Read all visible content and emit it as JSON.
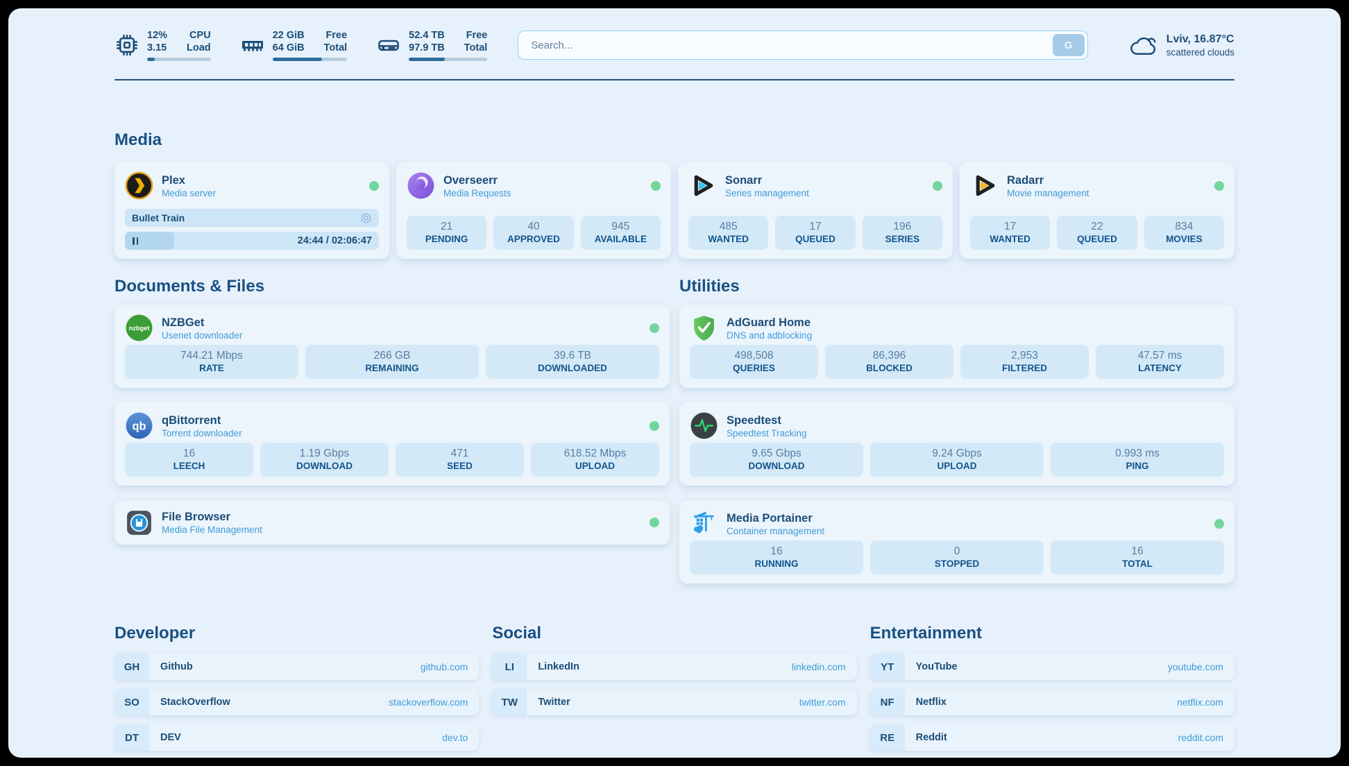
{
  "topbar": {
    "cpu": {
      "values": [
        "12%",
        "3.15"
      ],
      "labels": [
        "CPU",
        "Load"
      ],
      "progress_pct": 12
    },
    "ram": {
      "values": [
        "22 GiB",
        "64 GiB"
      ],
      "labels": [
        "Free",
        "Total"
      ],
      "progress_pct": 66
    },
    "disk": {
      "values": [
        "52.4 TB",
        "97.9 TB"
      ],
      "labels": [
        "Free",
        "Total"
      ],
      "progress_pct": 46
    },
    "search": {
      "placeholder": "Search...",
      "button_label": "G"
    },
    "weather": {
      "location_temp": "Lviv, 16.87°C",
      "condition": "scattered clouds"
    }
  },
  "sections": {
    "media": {
      "title": "Media",
      "plex": {
        "name": "Plex",
        "subtitle": "Media server",
        "online": true,
        "now_playing": {
          "title": "Bullet Train",
          "state": "paused",
          "time_display": "24:44 / 02:06:47",
          "progress_pct": 19.5
        }
      },
      "overseerr": {
        "name": "Overseerr",
        "subtitle": "Media Requests",
        "online": true,
        "stats": [
          {
            "value": "21",
            "label": "PENDING"
          },
          {
            "value": "40",
            "label": "APPROVED"
          },
          {
            "value": "945",
            "label": "AVAILABLE"
          }
        ]
      },
      "sonarr": {
        "name": "Sonarr",
        "subtitle": "Series management",
        "online": true,
        "stats": [
          {
            "value": "485",
            "label": "WANTED"
          },
          {
            "value": "17",
            "label": "QUEUED"
          },
          {
            "value": "196",
            "label": "SERIES"
          }
        ]
      },
      "radarr": {
        "name": "Radarr",
        "subtitle": "Movie management",
        "online": true,
        "stats": [
          {
            "value": "17",
            "label": "WANTED"
          },
          {
            "value": "22",
            "label": "QUEUED"
          },
          {
            "value": "834",
            "label": "MOVIES"
          }
        ]
      }
    },
    "documents": {
      "title": "Documents & Files",
      "nzbget": {
        "name": "NZBGet",
        "subtitle": "Usenet downloader",
        "online": true,
        "stats": [
          {
            "value": "744.21 Mbps",
            "label": "RATE"
          },
          {
            "value": "266 GB",
            "label": "REMAINING"
          },
          {
            "value": "39.6 TB",
            "label": "DOWNLOADED"
          }
        ]
      },
      "qbittorrent": {
        "name": "qBittorrent",
        "subtitle": "Torrent downloader",
        "online": true,
        "stats": [
          {
            "value": "16",
            "label": "LEECH"
          },
          {
            "value": "1.19 Gbps",
            "label": "DOWNLOAD"
          },
          {
            "value": "471",
            "label": "SEED"
          },
          {
            "value": "618.52 Mbps",
            "label": "UPLOAD"
          }
        ]
      },
      "filebrowser": {
        "name": "File Browser",
        "subtitle": "Media File Management",
        "online": true
      }
    },
    "utilities": {
      "title": "Utilities",
      "adguard": {
        "name": "AdGuard Home",
        "subtitle": "DNS and adblocking",
        "stats": [
          {
            "value": "498,508",
            "label": "QUERIES"
          },
          {
            "value": "86,396",
            "label": "BLOCKED"
          },
          {
            "value": "2,953",
            "label": "FILTERED"
          },
          {
            "value": "47.57 ms",
            "label": "LATENCY"
          }
        ]
      },
      "speedtest": {
        "name": "Speedtest",
        "subtitle": "Speedtest Tracking",
        "stats": [
          {
            "value": "9.65 Gbps",
            "label": "DOWNLOAD"
          },
          {
            "value": "9.24 Gbps",
            "label": "UPLOAD"
          },
          {
            "value": "0.993 ms",
            "label": "PING"
          }
        ]
      },
      "portainer": {
        "name": "Media Portainer",
        "subtitle": "Container management",
        "online": true,
        "stats": [
          {
            "value": "16",
            "label": "RUNNING"
          },
          {
            "value": "0",
            "label": "STOPPED"
          },
          {
            "value": "16",
            "label": "TOTAL"
          }
        ]
      }
    },
    "links": {
      "developer": {
        "title": "Developer",
        "items": [
          {
            "abbr": "GH",
            "name": "Github",
            "url": "github.com"
          },
          {
            "abbr": "SO",
            "name": "StackOverflow",
            "url": "stackoverflow.com"
          },
          {
            "abbr": "DT",
            "name": "DEV",
            "url": "dev.to"
          }
        ]
      },
      "social": {
        "title": "Social",
        "items": [
          {
            "abbr": "LI",
            "name": "LinkedIn",
            "url": "linkedin.com"
          },
          {
            "abbr": "TW",
            "name": "Twitter",
            "url": "twitter.com"
          }
        ]
      },
      "entertainment": {
        "title": "Entertainment",
        "items": [
          {
            "abbr": "YT",
            "name": "YouTube",
            "url": "youtube.com"
          },
          {
            "abbr": "NF",
            "name": "Netflix",
            "url": "netflix.com"
          },
          {
            "abbr": "RE",
            "name": "Reddit",
            "url": "reddit.com"
          }
        ]
      }
    }
  },
  "colors": {
    "page_bg": "#e7f1fb",
    "card_bg": "#ecf4fc",
    "stat_tile_bg": "#d3e9f8",
    "text_dark": "#1b4d77",
    "text_link_blue": "#3f9cd8",
    "stat_label_blue": "#12538b",
    "status_online_green": "#72d69c",
    "progress_fill": "#2e6d9e",
    "search_border": "#8fd3f3"
  }
}
